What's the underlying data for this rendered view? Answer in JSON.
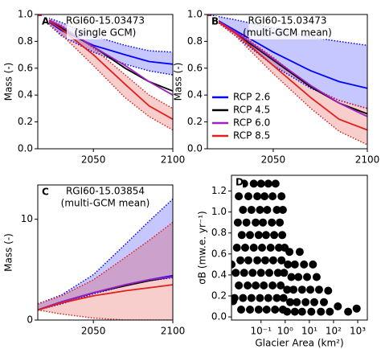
{
  "chart_data": [
    {
      "type": "line",
      "panel_label": "A",
      "title": "RGI60-15.03473",
      "subtitle": "(single GCM)",
      "ylabel": "Mass (-)",
      "x": [
        2015,
        2030,
        2050,
        2070,
        2085,
        2100
      ],
      "xlim": [
        2015,
        2100
      ],
      "xticks": [
        2050,
        2100
      ],
      "ylim": [
        0,
        1
      ],
      "yticks": [
        {
          "value": 0,
          "label": "0.0"
        },
        0.2,
        0.4,
        0.6,
        0.8,
        {
          "value": 1,
          "label": "1.0"
        }
      ],
      "series": [
        {
          "color": "#0000ff",
          "values": [
            1.0,
            0.88,
            0.77,
            0.7,
            0.65,
            0.63
          ],
          "upper": [
            1.0,
            0.94,
            0.84,
            0.77,
            0.73,
            0.72
          ],
          "lower": [
            1.0,
            0.84,
            0.72,
            0.63,
            0.58,
            0.55
          ]
        },
        {
          "color": "#000000",
          "values": [
            1.0,
            0.9,
            0.76,
            0.6,
            0.5,
            0.43
          ]
        },
        {
          "color": "#a020c0",
          "values": [
            1.0,
            0.91,
            0.76,
            0.62,
            0.5,
            0.4
          ]
        },
        {
          "color": "#e0201a",
          "values": [
            1.0,
            0.89,
            0.7,
            0.48,
            0.32,
            0.22
          ],
          "upper": [
            1.0,
            0.92,
            0.75,
            0.55,
            0.4,
            0.3
          ],
          "lower": [
            1.0,
            0.85,
            0.62,
            0.38,
            0.24,
            0.14
          ]
        }
      ]
    },
    {
      "type": "line",
      "panel_label": "B",
      "title": "RGI60-15.03473",
      "subtitle": "(multi-GCM mean)",
      "ylabel": "Mass (-)",
      "legend": "lower left",
      "x": [
        2015,
        2030,
        2050,
        2070,
        2085,
        2100
      ],
      "xlim": [
        2015,
        2100
      ],
      "xticks": [
        2050,
        2100
      ],
      "ylim": [
        0,
        1
      ],
      "yticks": [
        {
          "value": 0,
          "label": "0.0"
        },
        0.2,
        0.4,
        0.6,
        0.8,
        {
          "value": 1,
          "label": "1.0"
        }
      ],
      "series": [
        {
          "name": "RCP 2.6",
          "color": "#0000ff",
          "values": [
            1.0,
            0.88,
            0.72,
            0.58,
            0.5,
            0.45
          ],
          "upper": [
            1.0,
            0.96,
            0.9,
            0.83,
            0.8,
            0.77
          ],
          "lower": [
            1.0,
            0.84,
            0.62,
            0.45,
            0.36,
            0.3
          ]
        },
        {
          "name": "RCP 4.5",
          "color": "#000000",
          "values": [
            1.0,
            0.86,
            0.66,
            0.46,
            0.34,
            0.26
          ]
        },
        {
          "name": "RCP 6.0",
          "color": "#a020c0",
          "values": [
            1.0,
            0.87,
            0.67,
            0.47,
            0.34,
            0.24
          ]
        },
        {
          "name": "RCP 8.5",
          "color": "#e0201a",
          "values": [
            1.0,
            0.86,
            0.62,
            0.38,
            0.22,
            0.14
          ],
          "upper": [
            1.0,
            0.88,
            0.68,
            0.46,
            0.36,
            0.3
          ],
          "lower": [
            1.0,
            0.84,
            0.56,
            0.3,
            0.13,
            0.03
          ]
        }
      ]
    },
    {
      "type": "line",
      "panel_label": "C",
      "title": "RGI60-15.03854",
      "subtitle": "(multi-GCM mean)",
      "ylabel": "Mass (-)",
      "x": [
        2015,
        2030,
        2050,
        2070,
        2085,
        2100
      ],
      "xlim": [
        2015,
        2100
      ],
      "xticks": [
        2050,
        2100
      ],
      "ylim": [
        0,
        13.4
      ],
      "yticks": [
        0,
        10
      ],
      "series": [
        {
          "color": "#0000ff",
          "values": [
            1.0,
            1.8,
            2.7,
            3.5,
            4.0,
            4.4
          ],
          "upper": [
            1.6,
            2.5,
            4.5,
            7.5,
            9.8,
            12.0
          ],
          "lower": [
            1.0,
            1.6,
            2.6,
            3.4,
            3.9,
            4.2
          ]
        },
        {
          "color": "#000000",
          "values": [
            1.0,
            1.8,
            2.7,
            3.4,
            3.9,
            4.3
          ]
        },
        {
          "color": "#a020c0",
          "values": [
            1.0,
            1.8,
            2.7,
            3.5,
            4.0,
            4.3
          ]
        },
        {
          "color": "#e0201a",
          "values": [
            1.0,
            1.7,
            2.4,
            2.9,
            3.2,
            3.5
          ],
          "upper": [
            1.6,
            2.4,
            4.0,
            6.2,
            7.9,
            9.7
          ],
          "lower": [
            1.0,
            0.6,
            0.2,
            0,
            0,
            0
          ]
        }
      ]
    },
    {
      "type": "scatter",
      "panel_label": "D",
      "xlabel": "Glacier Area (km²)",
      "ylabel": "σB (mw.e. yr⁻¹)",
      "xscale": "log",
      "color": "#000000",
      "xlim": [
        0.006,
        2500
      ],
      "xticks": [
        {
          "value": 0.1,
          "label": "10⁻¹"
        },
        {
          "value": 1,
          "label": "10⁰"
        },
        {
          "value": 10,
          "label": "10¹"
        },
        {
          "value": 100,
          "label": "10²"
        },
        {
          "value": 1000,
          "label": "10³"
        }
      ],
      "ylim": [
        -0.03,
        1.35
      ],
      "yticks": [
        {
          "value": 0,
          "label": "0.0"
        },
        0.2,
        0.4,
        0.6,
        0.8,
        {
          "value": 1,
          "label": "1.0"
        },
        1.2
      ],
      "x": [
        0.02,
        0.05,
        0.1,
        0.2,
        0.4,
        0.012,
        0.03,
        0.07,
        0.14,
        0.3,
        0.7,
        0.018,
        0.04,
        0.09,
        0.18,
        0.45,
        0.8,
        0.011,
        0.025,
        0.06,
        0.12,
        0.28,
        0.6,
        0.016,
        0.035,
        0.08,
        0.16,
        0.35,
        0.75,
        0.01,
        0.022,
        0.05,
        0.11,
        0.25,
        0.55,
        0.95,
        0.014,
        0.03,
        0.07,
        0.15,
        0.32,
        0.7,
        0.009,
        0.02,
        0.045,
        0.1,
        0.22,
        0.5,
        0.9,
        0.012,
        0.028,
        0.06,
        0.13,
        0.3,
        0.65,
        0.008,
        0.018,
        0.04,
        0.09,
        0.2,
        0.45,
        0.85,
        0.015,
        0.035,
        0.08,
        0.17,
        0.38,
        0.8,
        1.5,
        4,
        1.3,
        2.5,
        6,
        14,
        1.8,
        3.5,
        8,
        20,
        1.2,
        2.2,
        5,
        11,
        25,
        1.6,
        3,
        7,
        16,
        40,
        1.2,
        2.5,
        5,
        12,
        30,
        70,
        150,
        400,
        900,
        60,
        0.006,
        0.007
      ],
      "values": [
        1.27,
        1.27,
        1.27,
        1.27,
        1.27,
        1.15,
        1.15,
        1.15,
        1.15,
        1.15,
        1.15,
        1.02,
        1.02,
        1.02,
        1.02,
        1.02,
        1.02,
        0.9,
        0.9,
        0.9,
        0.9,
        0.9,
        0.9,
        0.78,
        0.78,
        0.78,
        0.78,
        0.78,
        0.78,
        0.66,
        0.66,
        0.66,
        0.66,
        0.66,
        0.66,
        0.66,
        0.54,
        0.54,
        0.54,
        0.54,
        0.54,
        0.54,
        0.42,
        0.42,
        0.42,
        0.42,
        0.42,
        0.42,
        0.42,
        0.3,
        0.3,
        0.3,
        0.3,
        0.3,
        0.3,
        0.18,
        0.18,
        0.18,
        0.18,
        0.18,
        0.18,
        0.18,
        0.07,
        0.07,
        0.07,
        0.07,
        0.07,
        0.07,
        0.62,
        0.62,
        0.5,
        0.5,
        0.5,
        0.5,
        0.38,
        0.38,
        0.38,
        0.38,
        0.26,
        0.26,
        0.26,
        0.26,
        0.26,
        0.14,
        0.14,
        0.14,
        0.14,
        0.14,
        0.05,
        0.05,
        0.05,
        0.05,
        0.05,
        0.05,
        0.1,
        0.05,
        0.08,
        0.25,
        0.5,
        0.15
      ]
    }
  ]
}
